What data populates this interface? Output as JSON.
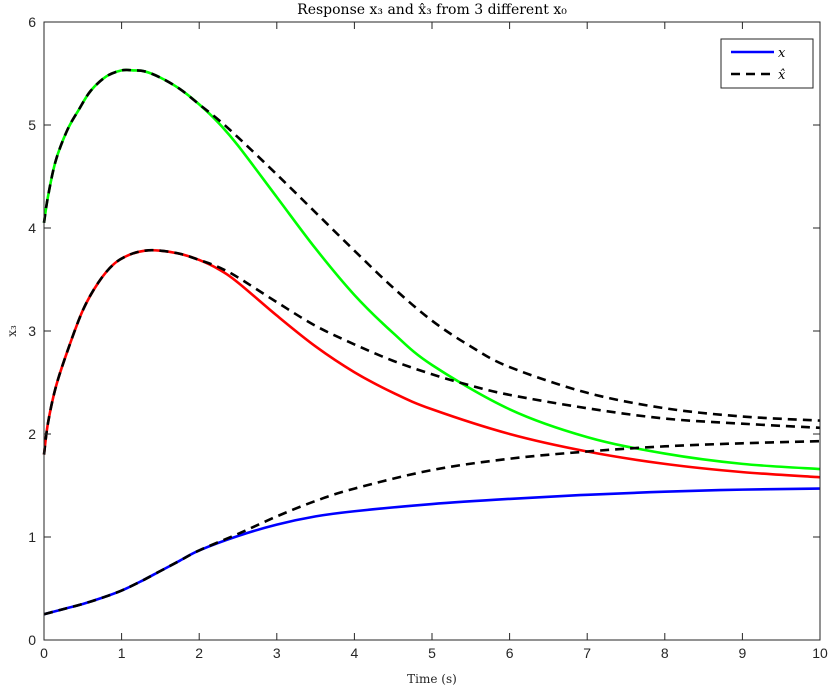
{
  "chart_data": {
    "type": "line",
    "title": "Response x₃ and x̂₃ from 3 different x₀",
    "xlabel": "Time (s)",
    "ylabel": "x₃",
    "xlim": [
      0,
      10
    ],
    "ylim": [
      0,
      6
    ],
    "xticks": [
      0,
      1,
      2,
      3,
      4,
      5,
      6,
      7,
      8,
      9,
      10
    ],
    "yticks": [
      0,
      1,
      2,
      3,
      4,
      5,
      6
    ],
    "grid": false,
    "legend": {
      "placement": "top-right",
      "entries": [
        {
          "label": "x",
          "style": "solid",
          "color": "#0000ff"
        },
        {
          "label": "x̂",
          "style": "dashed",
          "color": "#000000"
        }
      ]
    },
    "series": [
      {
        "role": "true-state",
        "color": "#0000ff",
        "style": "solid",
        "x": [
          0,
          0.25,
          0.5,
          0.75,
          1.0,
          1.25,
          1.5,
          1.75,
          2.0,
          2.5,
          3.0,
          3.5,
          4.0,
          5.0,
          6.0,
          7.0,
          8.0,
          9.0,
          10.0
        ],
        "y": [
          0.25,
          0.3,
          0.35,
          0.41,
          0.48,
          0.57,
          0.67,
          0.77,
          0.87,
          1.01,
          1.12,
          1.2,
          1.25,
          1.32,
          1.37,
          1.41,
          1.44,
          1.46,
          1.47
        ]
      },
      {
        "role": "true-state",
        "color": "#ff0000",
        "style": "solid",
        "x": [
          0,
          0.05,
          0.15,
          0.3,
          0.5,
          0.7,
          0.9,
          1.1,
          1.3,
          1.5,
          1.75,
          2.0,
          2.25,
          2.5,
          3.0,
          3.5,
          4.0,
          4.5,
          5.0,
          6.0,
          7.0,
          8.0,
          9.0,
          10.0
        ],
        "y": [
          1.8,
          2.1,
          2.45,
          2.8,
          3.2,
          3.47,
          3.65,
          3.74,
          3.78,
          3.78,
          3.75,
          3.69,
          3.6,
          3.47,
          3.15,
          2.85,
          2.6,
          2.4,
          2.24,
          2.0,
          1.83,
          1.71,
          1.63,
          1.58
        ]
      },
      {
        "role": "true-state",
        "color": "#00ff00",
        "style": "solid",
        "x": [
          0,
          0.05,
          0.15,
          0.3,
          0.45,
          0.6,
          0.8,
          1.0,
          1.15,
          1.3,
          1.5,
          1.75,
          2.0,
          2.25,
          2.5,
          3.0,
          3.5,
          4.0,
          4.5,
          5.0,
          6.0,
          7.0,
          8.0,
          9.0,
          10.0
        ],
        "y": [
          4.05,
          4.3,
          4.65,
          4.95,
          5.15,
          5.33,
          5.47,
          5.53,
          5.53,
          5.52,
          5.46,
          5.35,
          5.2,
          5.02,
          4.8,
          4.3,
          3.8,
          3.35,
          2.98,
          2.67,
          2.24,
          1.97,
          1.81,
          1.71,
          1.66
        ]
      },
      {
        "role": "estimate",
        "color": "#000000",
        "style": "dashed",
        "x": [
          0,
          0.25,
          0.5,
          0.75,
          1.0,
          1.25,
          1.5,
          1.75,
          2.0,
          2.5,
          3.0,
          3.5,
          4.0,
          5.0,
          6.0,
          7.0,
          8.0,
          9.0,
          10.0
        ],
        "y": [
          0.25,
          0.3,
          0.35,
          0.41,
          0.48,
          0.57,
          0.67,
          0.77,
          0.87,
          1.03,
          1.2,
          1.35,
          1.47,
          1.65,
          1.76,
          1.83,
          1.88,
          1.91,
          1.93
        ]
      },
      {
        "role": "estimate",
        "color": "#000000",
        "style": "dashed",
        "x": [
          0,
          0.05,
          0.15,
          0.3,
          0.5,
          0.7,
          0.9,
          1.1,
          1.3,
          1.5,
          1.75,
          2.0,
          2.25,
          2.5,
          3.0,
          3.5,
          4.0,
          4.5,
          5.0,
          5.5,
          6.0,
          7.0,
          8.0,
          9.0,
          10.0
        ],
        "y": [
          1.8,
          2.1,
          2.45,
          2.8,
          3.2,
          3.47,
          3.65,
          3.74,
          3.78,
          3.78,
          3.75,
          3.69,
          3.62,
          3.52,
          3.28,
          3.05,
          2.87,
          2.71,
          2.58,
          2.47,
          2.38,
          2.25,
          2.15,
          2.1,
          2.06
        ]
      },
      {
        "role": "estimate",
        "color": "#000000",
        "style": "dashed",
        "x": [
          0,
          0.05,
          0.15,
          0.3,
          0.45,
          0.6,
          0.8,
          1.0,
          1.15,
          1.3,
          1.5,
          1.75,
          2.0,
          2.25,
          2.5,
          3.0,
          3.5,
          4.0,
          4.5,
          5.0,
          5.5,
          6.0,
          7.0,
          8.0,
          9.0,
          10.0
        ],
        "y": [
          4.05,
          4.3,
          4.65,
          4.95,
          5.15,
          5.33,
          5.47,
          5.53,
          5.53,
          5.52,
          5.46,
          5.35,
          5.2,
          5.05,
          4.88,
          4.52,
          4.15,
          3.78,
          3.42,
          3.1,
          2.85,
          2.65,
          2.4,
          2.25,
          2.17,
          2.13
        ]
      }
    ]
  }
}
